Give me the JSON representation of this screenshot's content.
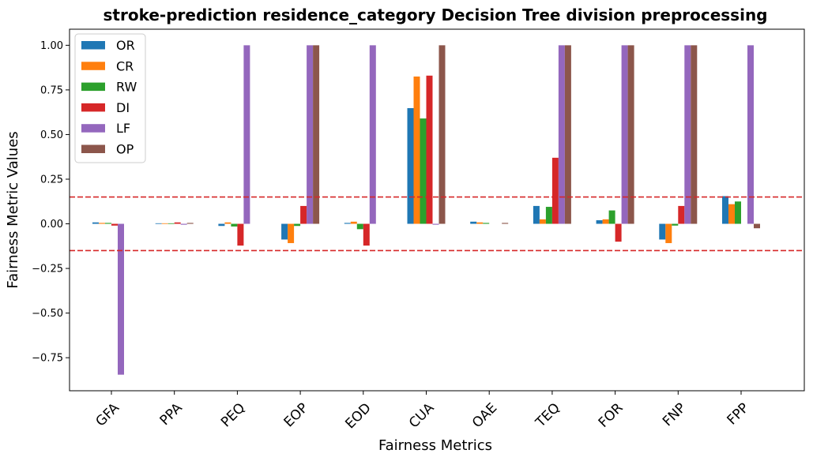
{
  "chart_data": {
    "type": "bar",
    "title": "stroke-prediction residence_category Decision Tree division preprocessing",
    "xlabel": "Fairness Metrics",
    "ylabel": "Fairness Metric Values",
    "categories": [
      "GFA",
      "PPA",
      "PEQ",
      "EOP",
      "EOD",
      "CUA",
      "OAE",
      "TEQ",
      "FOR",
      "FNP",
      "FPP"
    ],
    "ylim": [
      -0.935,
      1.09
    ],
    "yticks": [
      -0.75,
      -0.5,
      -0.25,
      0.0,
      0.25,
      0.5,
      0.75,
      1.0
    ],
    "ytick_labels": [
      "−0.75",
      "−0.50",
      "−0.25",
      "0.00",
      "0.25",
      "0.50",
      "0.75",
      "1.00"
    ],
    "reference_lines": [
      0.15,
      -0.15
    ],
    "reference_line_color": "#d62728",
    "grid": false,
    "legend_position": "top-left",
    "series": [
      {
        "name": "OR",
        "color": "#1f77b4",
        "values": [
          0.008,
          0.003,
          -0.012,
          -0.088,
          0.005,
          0.648,
          0.012,
          0.1,
          0.02,
          -0.088,
          0.155
        ]
      },
      {
        "name": "CR",
        "color": "#ff7f0e",
        "values": [
          0.005,
          0.003,
          0.008,
          -0.108,
          0.012,
          0.825,
          0.008,
          0.025,
          0.025,
          -0.108,
          0.11
        ]
      },
      {
        "name": "RW",
        "color": "#2ca02c",
        "values": [
          0.005,
          0.003,
          -0.015,
          -0.012,
          -0.03,
          0.59,
          0.005,
          0.095,
          0.075,
          -0.01,
          0.125
        ]
      },
      {
        "name": "DI",
        "color": "#d62728",
        "values": [
          -0.01,
          0.008,
          -0.122,
          0.1,
          -0.122,
          0.83,
          0.0,
          0.37,
          -0.1,
          0.1,
          0.0
        ]
      },
      {
        "name": "LF",
        "color": "#9467bd",
        "values": [
          -0.845,
          -0.005,
          1.0,
          1.0,
          1.0,
          -0.005,
          0.0,
          1.0,
          1.0,
          1.0,
          1.0
        ]
      },
      {
        "name": "OP",
        "color": "#8c564b",
        "values": [
          0.0,
          0.005,
          0.0,
          1.0,
          0.0,
          1.0,
          0.005,
          1.0,
          1.0,
          1.0,
          -0.025
        ]
      }
    ]
  }
}
